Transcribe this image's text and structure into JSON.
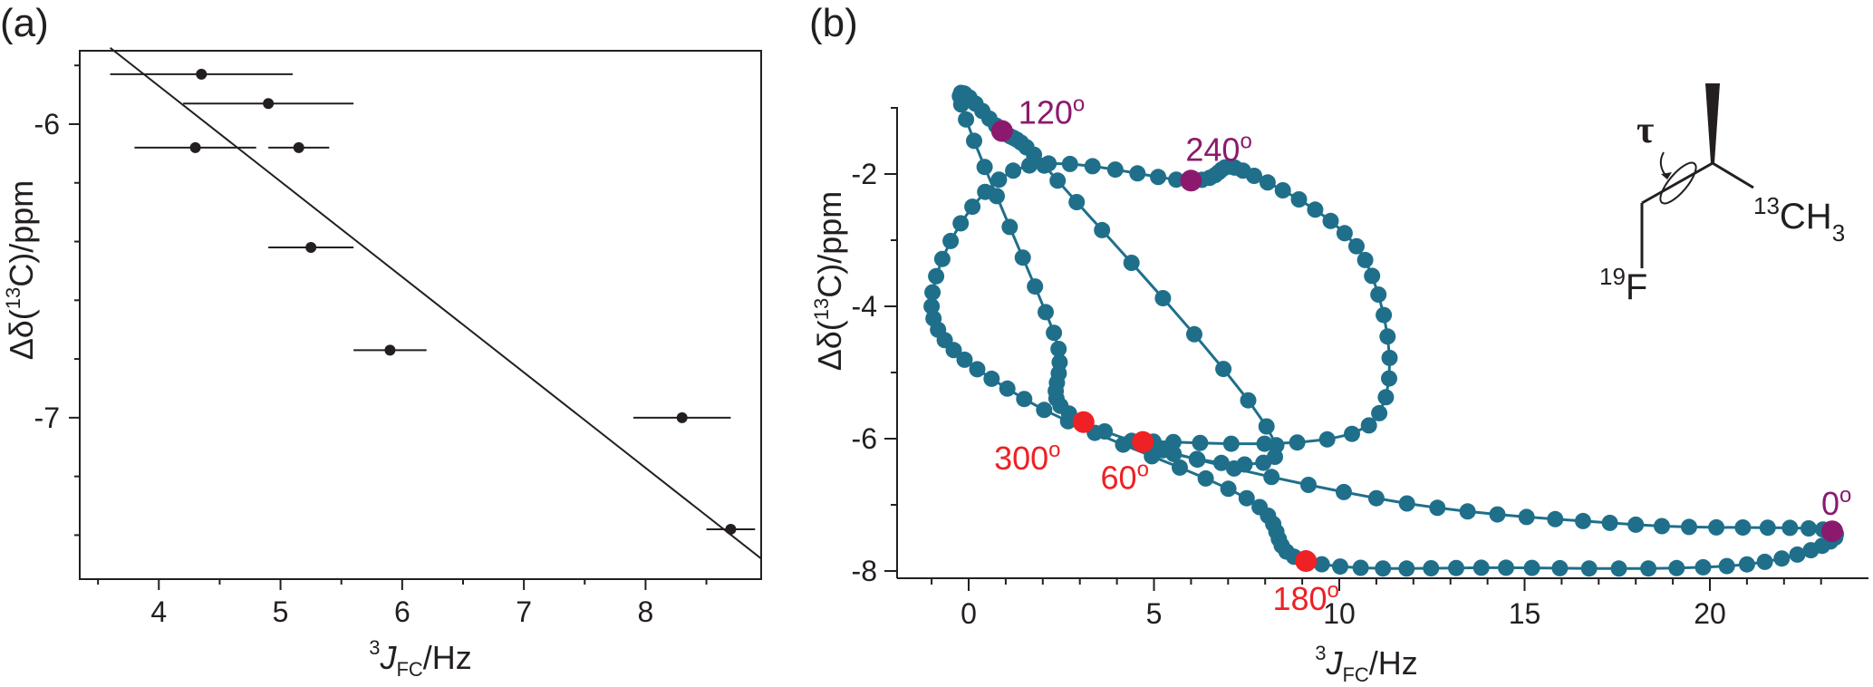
{
  "chart_data": [
    {
      "panel": "(a)",
      "type": "scatter",
      "title": "",
      "xlabel": {
        "pre": "3",
        "italic": "J",
        "sub": "FC",
        "post": "/Hz"
      },
      "ylabel": {
        "pre": "Δδ(",
        "sup": "13",
        "post": "C)/ppm"
      },
      "xlim": [
        3.35,
        8.95
      ],
      "ylim": [
        -7.55,
        -5.75
      ],
      "xticks": [
        "4",
        "5",
        "6",
        "7",
        "8"
      ],
      "yticks": [
        "-6",
        "-7"
      ],
      "points": [
        {
          "x": 4.35,
          "y": -5.83,
          "xerr_lo": 3.6,
          "xerr_hi": 5.1
        },
        {
          "x": 4.9,
          "y": -5.93,
          "xerr_lo": 4.2,
          "xerr_hi": 5.6
        },
        {
          "x": 4.3,
          "y": -6.08,
          "xerr_lo": 3.8,
          "xerr_hi": 4.8
        },
        {
          "x": 5.15,
          "y": -6.08,
          "xerr_lo": 4.9,
          "xerr_hi": 5.4
        },
        {
          "x": 5.25,
          "y": -6.42,
          "xerr_lo": 4.9,
          "xerr_hi": 5.6
        },
        {
          "x": 5.9,
          "y": -6.77,
          "xerr_lo": 5.6,
          "xerr_hi": 6.2
        },
        {
          "x": 8.3,
          "y": -7.0,
          "xerr_lo": 7.9,
          "xerr_hi": 8.7
        },
        {
          "x": 8.7,
          "y": -7.38,
          "xerr_lo": 8.5,
          "xerr_hi": 8.9
        }
      ],
      "fit_line": {
        "x": [
          3.6,
          8.95
        ],
        "y": [
          -5.74,
          -7.48
        ]
      }
    },
    {
      "panel": "(b)",
      "type": "line",
      "title": "",
      "xlabel": {
        "pre": "3",
        "italic": "J",
        "sub": "FC",
        "post": "/Hz"
      },
      "ylabel": {
        "pre": "Δδ(",
        "sup": "13",
        "post": "C)/ppm"
      },
      "xlim": [
        -1.8,
        23.6
      ],
      "ylim": [
        -8.7,
        -1.0
      ],
      "xticks": [
        "0",
        "5",
        "10",
        "15",
        "20"
      ],
      "yticks": [
        "-2",
        "-4",
        "-6",
        "-8"
      ],
      "colors": {
        "curve": "#1f6f8b",
        "purple_marker": "#8b1a6e",
        "red_marker": "#ee2124"
      },
      "curve_anchors": [
        {
          "angle": 0,
          "x": 23.3,
          "y": -7.4
        },
        {
          "angle": 60,
          "x": 4.7,
          "y": -6.05
        },
        {
          "angle": 120,
          "x": 0.9,
          "y": -1.35
        },
        {
          "angle": 180,
          "x": 9.1,
          "y": -7.85
        },
        {
          "angle": 240,
          "x": 6.0,
          "y": -2.1
        },
        {
          "angle": 300,
          "x": 3.1,
          "y": -5.75
        }
      ],
      "curve_controls": [
        {
          "x": 18.0,
          "y": -7.3
        },
        {
          "x": 11.0,
          "y": -6.9
        },
        {
          "x": 2.3,
          "y": -4.4
        },
        {
          "x": -0.2,
          "y": -0.95
        },
        {
          "x": 2.4,
          "y": -2.1
        },
        {
          "x": 8.3,
          "y": -6.1
        },
        {
          "x": 10.8,
          "y": -5.8
        },
        {
          "x": 10.7,
          "y": -3.3
        },
        {
          "x": 7.4,
          "y": -1.95
        },
        {
          "x": 1.2,
          "y": -1.95
        },
        {
          "x": -1.0,
          "y": -4.0
        },
        {
          "x": 1.5,
          "y": -5.4
        },
        {
          "x": 7.5,
          "y": -6.9
        },
        {
          "x": 14.5,
          "y": -7.95
        },
        {
          "x": 21.0,
          "y": -7.9
        }
      ],
      "labels": [
        {
          "text": "0",
          "deg": "o",
          "color": "purple"
        },
        {
          "text": "60",
          "deg": "o",
          "color": "red"
        },
        {
          "text": "120",
          "deg": "o",
          "color": "purple"
        },
        {
          "text": "180",
          "deg": "o",
          "color": "red"
        },
        {
          "text": "240",
          "deg": "o",
          "color": "purple"
        },
        {
          "text": "300",
          "deg": "o",
          "color": "red"
        }
      ],
      "inset": {
        "tau": "τ",
        "f_sup": "19",
        "f": "F",
        "c_sup": "13",
        "c": "CH",
        "c_sub": "3"
      }
    }
  ],
  "panel_labels": [
    "(a)",
    "(b)"
  ]
}
